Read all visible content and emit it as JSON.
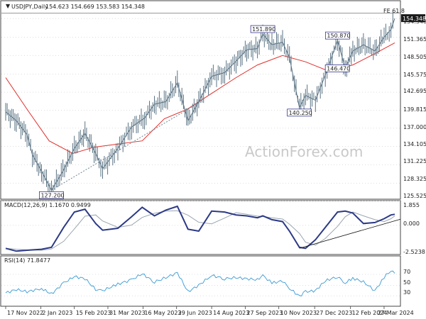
{
  "chart_data": [
    {
      "type": "candlestick",
      "symbol_label": "USDJPY,Daily",
      "ohlc_label": "154.623 154.669 153.583 154.348",
      "last_price": "154.348",
      "ylim": [
        126.0,
        156.6
      ],
      "y_ticks": [
        "154.348",
        "151.365",
        "148.505",
        "145.575",
        "142.695",
        "139.815",
        "137.000",
        "134.105",
        "131.225",
        "128.325",
        "125.525"
      ],
      "fe_label": "FE 61.8",
      "fe_level": 155.2,
      "annotations": [
        {
          "text": "127.200",
          "x": "2023-01-16",
          "y": 127.2
        },
        {
          "text": "151.890",
          "x": "2023-10-20",
          "y": 151.89
        },
        {
          "text": "140.250",
          "x": "2023-12-07",
          "y": 140.25
        },
        {
          "text": "150.870",
          "x": "2024-01-26",
          "y": 150.87
        },
        {
          "text": "146.470",
          "x": "2024-02-05",
          "y": 146.47
        }
      ],
      "trendline_start": {
        "x": "2023-01-16",
        "y": 127.2
      },
      "trendline_end": {
        "x": "2023-07-28",
        "y": 141.0
      },
      "ma_series": [
        [
          "2022-11-17",
          145.0
        ],
        [
          "2022-12-15",
          140.0
        ],
        [
          "2023-01-13",
          135.0
        ],
        [
          "2023-02-13",
          133.0
        ],
        [
          "2023-03-13",
          134.0
        ],
        [
          "2023-04-13",
          134.5
        ],
        [
          "2023-05-15",
          135.0
        ],
        [
          "2023-06-13",
          138.5
        ],
        [
          "2023-07-13",
          140.0
        ],
        [
          "2023-08-14",
          142.5
        ],
        [
          "2023-09-15",
          145.0
        ],
        [
          "2023-10-13",
          147.0
        ],
        [
          "2023-11-15",
          148.5
        ],
        [
          "2023-12-15",
          147.5
        ],
        [
          "2024-01-15",
          146.0
        ],
        [
          "2024-02-15",
          147.0
        ],
        [
          "2024-03-15",
          148.8
        ],
        [
          "2024-04-10",
          150.5
        ]
      ],
      "price_series": [
        [
          "2022-11-17",
          139.6
        ],
        [
          "2022-12-01",
          138.2
        ],
        [
          "2022-12-15",
          136.0
        ],
        [
          "2022-12-22",
          132.8
        ],
        [
          "2023-01-03",
          130.2
        ],
        [
          "2023-01-16",
          127.2
        ],
        [
          "2023-01-31",
          130.2
        ],
        [
          "2023-02-15",
          133.8
        ],
        [
          "2023-03-01",
          136.2
        ],
        [
          "2023-03-15",
          133.0
        ],
        [
          "2023-03-24",
          130.6
        ],
        [
          "2023-04-13",
          133.8
        ],
        [
          "2023-05-01",
          137.2
        ],
        [
          "2023-05-18",
          138.6
        ],
        [
          "2023-05-31",
          140.8
        ],
        [
          "2023-06-15",
          141.2
        ],
        [
          "2023-06-30",
          144.2
        ],
        [
          "2023-07-14",
          138.2
        ],
        [
          "2023-07-28",
          141.2
        ],
        [
          "2023-08-14",
          145.2
        ],
        [
          "2023-08-31",
          145.8
        ],
        [
          "2023-09-15",
          147.6
        ],
        [
          "2023-09-29",
          149.4
        ],
        [
          "2023-10-13",
          149.6
        ],
        [
          "2023-10-20",
          151.89
        ],
        [
          "2023-11-01",
          150.2
        ],
        [
          "2023-11-15",
          150.6
        ],
        [
          "2023-11-24",
          148.2
        ],
        [
          "2023-12-07",
          140.25
        ],
        [
          "2023-12-15",
          142.2
        ],
        [
          "2023-12-28",
          141.4
        ],
        [
          "2024-01-10",
          145.4
        ],
        [
          "2024-01-26",
          150.87
        ],
        [
          "2024-02-05",
          146.47
        ],
        [
          "2024-02-15",
          149.2
        ],
        [
          "2024-02-29",
          150.2
        ],
        [
          "2024-03-15",
          149.2
        ],
        [
          "2024-03-27",
          151.4
        ],
        [
          "2024-04-05",
          152.6
        ],
        [
          "2024-04-10",
          154.348
        ]
      ],
      "watermark": "ActionForex.com"
    },
    {
      "type": "line",
      "indicator_label": "MACD(12,26,9) 1.1670 0.9499",
      "y_ticks": [
        "1.855",
        "0.000",
        "-2.5238"
      ],
      "ylim": [
        -2.9,
        2.3
      ],
      "macd_series": [
        [
          "2022-11-17",
          -2.4
        ],
        [
          "2022-12-01",
          -2.7
        ],
        [
          "2022-12-15",
          -2.6
        ],
        [
          "2023-01-03",
          -2.5
        ],
        [
          "2023-01-16",
          -2.3
        ],
        [
          "2023-02-01",
          -0.2
        ],
        [
          "2023-02-15",
          1.4
        ],
        [
          "2023-03-01",
          1.7
        ],
        [
          "2023-03-15",
          0.2
        ],
        [
          "2023-03-24",
          -0.5
        ],
        [
          "2023-04-13",
          -0.3
        ],
        [
          "2023-05-01",
          0.9
        ],
        [
          "2023-05-15",
          1.9
        ],
        [
          "2023-05-31",
          1.0
        ],
        [
          "2023-06-15",
          1.6
        ],
        [
          "2023-06-30",
          2.0
        ],
        [
          "2023-07-14",
          -0.4
        ],
        [
          "2023-07-28",
          -0.6
        ],
        [
          "2023-08-14",
          1.5
        ],
        [
          "2023-08-31",
          1.4
        ],
        [
          "2023-09-15",
          1.1
        ],
        [
          "2023-09-29",
          1.0
        ],
        [
          "2023-10-13",
          0.8
        ],
        [
          "2023-10-20",
          1.0
        ],
        [
          "2023-11-01",
          0.6
        ],
        [
          "2023-11-15",
          0.4
        ],
        [
          "2023-11-24",
          -0.6
        ],
        [
          "2023-12-07",
          -2.3
        ],
        [
          "2023-12-15",
          -2.4
        ],
        [
          "2023-12-28",
          -1.5
        ],
        [
          "2024-01-10",
          -0.2
        ],
        [
          "2024-01-26",
          1.4
        ],
        [
          "2024-02-05",
          1.5
        ],
        [
          "2024-02-15",
          1.3
        ],
        [
          "2024-02-29",
          0.2
        ],
        [
          "2024-03-15",
          0.3
        ],
        [
          "2024-03-27",
          0.7
        ],
        [
          "2024-04-05",
          1.1
        ],
        [
          "2024-04-10",
          1.167
        ]
      ],
      "macd_trendline": [
        [
          "2023-12-07",
          -2.4
        ],
        [
          "2024-04-10",
          0.5
        ]
      ]
    },
    {
      "type": "line",
      "indicator_label": "RSI(14) 71.8477",
      "y_ticks": [
        "70",
        "50",
        "30"
      ],
      "ylim": [
        14,
        100
      ],
      "rsi_series": [
        [
          "2022-11-17",
          36
        ],
        [
          "2022-12-01",
          42
        ],
        [
          "2022-12-15",
          38
        ],
        [
          "2023-01-03",
          44
        ],
        [
          "2023-01-16",
          34
        ],
        [
          "2023-02-01",
          54
        ],
        [
          "2023-02-15",
          66
        ],
        [
          "2023-03-01",
          62
        ],
        [
          "2023-03-15",
          42
        ],
        [
          "2023-03-24",
          40
        ],
        [
          "2023-04-13",
          52
        ],
        [
          "2023-05-01",
          60
        ],
        [
          "2023-05-15",
          71
        ],
        [
          "2023-05-31",
          56
        ],
        [
          "2023-06-15",
          64
        ],
        [
          "2023-06-30",
          73
        ],
        [
          "2023-07-14",
          38
        ],
        [
          "2023-07-28",
          50
        ],
        [
          "2023-08-14",
          68
        ],
        [
          "2023-08-31",
          62
        ],
        [
          "2023-09-15",
          64
        ],
        [
          "2023-09-29",
          62
        ],
        [
          "2023-10-13",
          60
        ],
        [
          "2023-10-20",
          68
        ],
        [
          "2023-11-01",
          54
        ],
        [
          "2023-11-15",
          58
        ],
        [
          "2023-11-24",
          44
        ],
        [
          "2023-12-07",
          30
        ],
        [
          "2023-12-15",
          38
        ],
        [
          "2023-12-28",
          40
        ],
        [
          "2024-01-10",
          58
        ],
        [
          "2024-01-26",
          66
        ],
        [
          "2024-02-05",
          54
        ],
        [
          "2024-02-15",
          63
        ],
        [
          "2024-02-29",
          56
        ],
        [
          "2024-03-15",
          40
        ],
        [
          "2024-03-27",
          64
        ],
        [
          "2024-04-05",
          78
        ],
        [
          "2024-04-10",
          71.85
        ]
      ]
    }
  ],
  "x_labels": [
    {
      "text": "17 Nov 2022",
      "x": "2022-11-17"
    },
    {
      "text": "2 Jan 2023",
      "x": "2023-01-02"
    },
    {
      "text": "15 Feb 2023",
      "x": "2023-02-15"
    },
    {
      "text": "31 Mar 2023",
      "x": "2023-03-31"
    },
    {
      "text": "16 May 2023",
      "x": "2023-05-16"
    },
    {
      "text": "29 Jun 2023",
      "x": "2023-06-29"
    },
    {
      "text": "14 Aug 2023",
      "x": "2023-08-14"
    },
    {
      "text": "27 Sep 2023",
      "x": "2023-09-27"
    },
    {
      "text": "10 Nov 2023",
      "x": "2023-11-10"
    },
    {
      "text": "27 Dec 2023",
      "x": "2023-12-27"
    },
    {
      "text": "12 Feb 2024",
      "x": "2024-02-12"
    },
    {
      "text": "27 Mar 2024",
      "x": "2024-03-27"
    }
  ],
  "colors": {
    "price": "#5a7384",
    "ma": "#e0302c",
    "trendline": "#6f8797",
    "macd": "#2c3a86",
    "signal": "#9aa6b0",
    "rsi": "#3a9ad4",
    "grid": "#bdbdbd",
    "border": "#444444",
    "annotation_box": "#1a1a80"
  }
}
